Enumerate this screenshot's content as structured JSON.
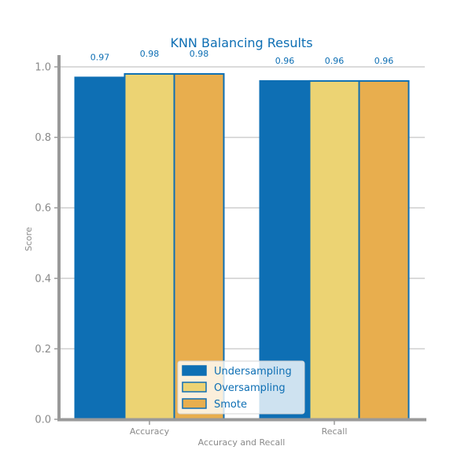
{
  "chart_data": {
    "type": "bar",
    "title": "KNN Balancing Results",
    "xlabel": "Accuracy and Recall",
    "ylabel": "Score",
    "categories": [
      "Accuracy",
      "Recall"
    ],
    "series": [
      {
        "name": "Undersampling",
        "values": [
          0.97,
          0.96
        ],
        "labels": [
          "0.97",
          "0.96"
        ],
        "color": "#0e6fb4"
      },
      {
        "name": "Oversampling",
        "values": [
          0.98,
          0.96
        ],
        "labels": [
          "0.98",
          "0.96"
        ],
        "color": "#ecd373"
      },
      {
        "name": "Smote",
        "values": [
          0.98,
          0.96
        ],
        "labels": [
          "0.98",
          "0.96"
        ],
        "color": "#e8ae4e"
      }
    ],
    "ylim": [
      0,
      1.0
    ],
    "yticks": [
      "0.0",
      "0.2",
      "0.4",
      "0.6",
      "0.8",
      "1.0"
    ],
    "grid": true,
    "legend_position": "bottom-center"
  }
}
